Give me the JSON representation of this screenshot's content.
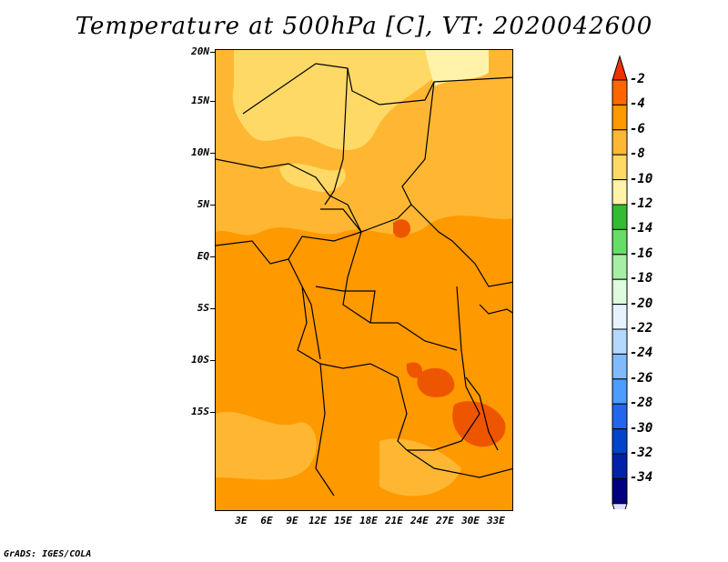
{
  "title": "Temperature at 500hPa [C], VT: 2020042600",
  "credit": "GrADS: IGES/COLA",
  "map": {
    "latitude_labels": [
      "20N",
      "15N",
      "10N",
      "5N",
      "EQ",
      "5S",
      "10S",
      "15S"
    ],
    "longitude_labels": [
      "3E",
      "6E",
      "9E",
      "12E",
      "15E",
      "18E",
      "21E",
      "24E",
      "27E",
      "30E",
      "33E"
    ],
    "region": "Central Africa",
    "field": "500hPa temperature"
  },
  "colorbar": {
    "labels": [
      "-2",
      "-4",
      "-6",
      "-8",
      "-10",
      "-12",
      "-14",
      "-16",
      "-18",
      "-20",
      "-22",
      "-24",
      "-26",
      "-28",
      "-30",
      "-32",
      "-34"
    ],
    "colors": [
      "#ee3300",
      "#ff6600",
      "#ff9900",
      "#ffb733",
      "#ffd966",
      "#fff3aa",
      "#33bb33",
      "#66dd66",
      "#a6eea6",
      "#ddfbdd",
      "#e6f3ff",
      "#b3d9ff",
      "#80bbff",
      "#4d9cff",
      "#2266ee",
      "#0044cc",
      "#0022aa",
      "#000080",
      "#e0e0ff"
    ]
  }
}
